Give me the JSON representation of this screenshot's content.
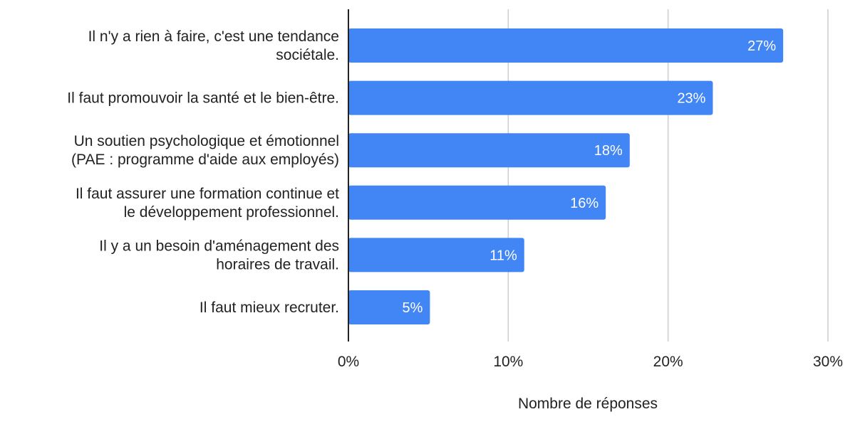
{
  "chart_data": {
    "type": "bar",
    "orientation": "horizontal",
    "categories": [
      [
        "Il n'y a rien à faire, c'est une tendance",
        "sociétale."
      ],
      [
        "Il faut promouvoir la santé et le bien-être."
      ],
      [
        "Un soutien psychologique et émotionnel",
        "(PAE : programme d'aide aux employés)"
      ],
      [
        "Il faut assurer une formation continue et",
        "le développement professionnel."
      ],
      [
        "Il y a un besoin d'aménagement des",
        "horaires de travail."
      ],
      [
        "Il faut mieux recruter."
      ]
    ],
    "values": [
      27.2,
      22.8,
      17.6,
      16.1,
      11.0,
      5.1
    ],
    "value_labels": [
      "27%",
      "23%",
      "18%",
      "16%",
      "11%",
      "5%"
    ],
    "xlabel": "Nombre de réponses",
    "ylabel": "",
    "xlim": [
      0,
      30
    ],
    "xticks": [
      0,
      10,
      20,
      30
    ],
    "xtick_labels": [
      "0%",
      "10%",
      "20%",
      "30%"
    ],
    "grid": true,
    "bar_color": "#4285f4",
    "grid_color": "#cccccc",
    "axis_color": "#222222"
  }
}
